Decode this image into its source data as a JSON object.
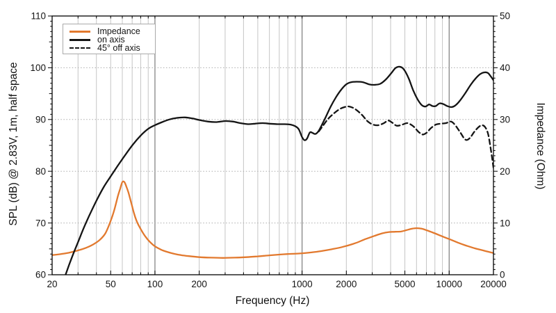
{
  "chart_data": {
    "type": "line",
    "title": "",
    "x_axis": {
      "label": "Frequency (Hz)",
      "scale": "log",
      "min": 20,
      "max": 20000,
      "labeled_ticks": [
        {
          "v": 20,
          "label": "20"
        },
        {
          "v": 50,
          "label": "50"
        },
        {
          "v": 100,
          "label": "100"
        },
        {
          "v": 200,
          "label": "200"
        },
        {
          "v": 1000,
          "label": "1000"
        },
        {
          "v": 2000,
          "label": "2000"
        },
        {
          "v": 5000,
          "label": "5000"
        },
        {
          "v": 10000,
          "label": "10000"
        },
        {
          "v": 20000,
          "label": "20000"
        }
      ],
      "minor_ticks": [
        30,
        40,
        50,
        60,
        70,
        80,
        90,
        200,
        300,
        400,
        500,
        600,
        700,
        800,
        900,
        2000,
        3000,
        4000,
        5000,
        6000,
        7000,
        8000,
        9000
      ],
      "decade_lines": [
        100,
        1000,
        10000
      ]
    },
    "y_left": {
      "label": "SPL (dB) @ 2.83V, 1m, half space",
      "min": 60,
      "max": 110,
      "major_ticks": [
        60,
        70,
        80,
        90,
        100,
        110
      ],
      "minor_step": 1,
      "gridlines": [
        70,
        80,
        90,
        100
      ],
      "grid_style": "dotted"
    },
    "y_right": {
      "label": "Impedance (Ohm)",
      "min": 0,
      "max": 50,
      "major_ticks": [
        0,
        10,
        20,
        30,
        40,
        50
      ],
      "minor_step": 1
    },
    "legend": {
      "position": "top-left-inside"
    },
    "colors": {
      "impedance": "#e2792e",
      "spl": "#141414",
      "grid_minor": "#c5c5c5",
      "grid_decade": "#7f7f7f",
      "grid_dotted": "#ababab",
      "axis": "#000000",
      "text": "#141414"
    },
    "series": [
      {
        "name": "Impedance",
        "axis": "right",
        "style": "solid",
        "color": "#e2792e",
        "points": [
          [
            20,
            3.8
          ],
          [
            23,
            4.0
          ],
          [
            26,
            4.25
          ],
          [
            30,
            4.7
          ],
          [
            34,
            5.2
          ],
          [
            38,
            5.85
          ],
          [
            42,
            6.7
          ],
          [
            46,
            8.0
          ],
          [
            50,
            10.4
          ],
          [
            53,
            12.6
          ],
          [
            56,
            15.2
          ],
          [
            58,
            16.6
          ],
          [
            60,
            17.9
          ],
          [
            62,
            17.9
          ],
          [
            64,
            17.0
          ],
          [
            66,
            15.9
          ],
          [
            69,
            13.9
          ],
          [
            72,
            11.9
          ],
          [
            75,
            10.4
          ],
          [
            78,
            9.4
          ],
          [
            82,
            8.3
          ],
          [
            86,
            7.4
          ],
          [
            92,
            6.4
          ],
          [
            100,
            5.5
          ],
          [
            110,
            4.85
          ],
          [
            120,
            4.45
          ],
          [
            135,
            4.05
          ],
          [
            150,
            3.8
          ],
          [
            170,
            3.6
          ],
          [
            200,
            3.4
          ],
          [
            240,
            3.3
          ],
          [
            290,
            3.25
          ],
          [
            350,
            3.3
          ],
          [
            420,
            3.4
          ],
          [
            500,
            3.55
          ],
          [
            600,
            3.75
          ],
          [
            700,
            3.9
          ],
          [
            800,
            4.0
          ],
          [
            950,
            4.1
          ],
          [
            1100,
            4.25
          ],
          [
            1300,
            4.5
          ],
          [
            1600,
            4.95
          ],
          [
            1900,
            5.4
          ],
          [
            2300,
            6.1
          ],
          [
            2700,
            6.9
          ],
          [
            3100,
            7.5
          ],
          [
            3500,
            8.0
          ],
          [
            3900,
            8.25
          ],
          [
            4300,
            8.3
          ],
          [
            4700,
            8.35
          ],
          [
            5100,
            8.6
          ],
          [
            5600,
            8.9
          ],
          [
            6000,
            9.0
          ],
          [
            6500,
            8.9
          ],
          [
            7100,
            8.55
          ],
          [
            8000,
            8.0
          ],
          [
            9000,
            7.4
          ],
          [
            10000,
            6.9
          ],
          [
            11500,
            6.2
          ],
          [
            13000,
            5.65
          ],
          [
            15000,
            5.1
          ],
          [
            17000,
            4.7
          ],
          [
            19000,
            4.35
          ],
          [
            20000,
            4.2
          ]
        ]
      },
      {
        "name": "on axis",
        "axis": "left",
        "style": "solid",
        "color": "#141414",
        "points": [
          [
            22.5,
            56.5
          ],
          [
            24,
            59.0
          ],
          [
            26,
            61.8
          ],
          [
            28,
            64.2
          ],
          [
            30,
            66.3
          ],
          [
            33,
            69.2
          ],
          [
            36,
            71.6
          ],
          [
            40,
            74.3
          ],
          [
            45,
            77.0
          ],
          [
            50,
            79.0
          ],
          [
            56,
            81.1
          ],
          [
            63,
            83.2
          ],
          [
            71,
            85.2
          ],
          [
            80,
            86.9
          ],
          [
            90,
            88.2
          ],
          [
            100,
            88.9
          ],
          [
            112,
            89.5
          ],
          [
            125,
            90.0
          ],
          [
            140,
            90.3
          ],
          [
            160,
            90.4
          ],
          [
            180,
            90.2
          ],
          [
            200,
            89.9
          ],
          [
            230,
            89.6
          ],
          [
            260,
            89.5
          ],
          [
            300,
            89.7
          ],
          [
            340,
            89.6
          ],
          [
            380,
            89.3
          ],
          [
            430,
            89.1
          ],
          [
            480,
            89.2
          ],
          [
            540,
            89.3
          ],
          [
            600,
            89.2
          ],
          [
            680,
            89.1
          ],
          [
            760,
            89.1
          ],
          [
            840,
            89.0
          ],
          [
            900,
            88.7
          ],
          [
            950,
            88.1
          ],
          [
            1000,
            86.6
          ],
          [
            1040,
            86.0
          ],
          [
            1080,
            86.3
          ],
          [
            1130,
            87.5
          ],
          [
            1180,
            87.4
          ],
          [
            1230,
            87.2
          ],
          [
            1290,
            87.7
          ],
          [
            1360,
            88.9
          ],
          [
            1450,
            90.5
          ],
          [
            1560,
            92.4
          ],
          [
            1700,
            94.3
          ],
          [
            1850,
            95.8
          ],
          [
            2000,
            96.8
          ],
          [
            2150,
            97.2
          ],
          [
            2350,
            97.3
          ],
          [
            2600,
            97.2
          ],
          [
            2850,
            96.8
          ],
          [
            3100,
            96.7
          ],
          [
            3400,
            96.9
          ],
          [
            3700,
            97.7
          ],
          [
            4000,
            98.8
          ],
          [
            4300,
            99.9
          ],
          [
            4550,
            100.2
          ],
          [
            4800,
            100.0
          ],
          [
            5050,
            99.2
          ],
          [
            5350,
            97.7
          ],
          [
            5700,
            95.6
          ],
          [
            6100,
            93.9
          ],
          [
            6500,
            92.8
          ],
          [
            6900,
            92.5
          ],
          [
            7300,
            92.9
          ],
          [
            7700,
            92.6
          ],
          [
            8100,
            92.6
          ],
          [
            8600,
            93.1
          ],
          [
            9100,
            93.0
          ],
          [
            9700,
            92.6
          ],
          [
            10400,
            92.4
          ],
          [
            11000,
            92.7
          ],
          [
            11800,
            93.6
          ],
          [
            12800,
            95.0
          ],
          [
            14000,
            96.7
          ],
          [
            15200,
            98.0
          ],
          [
            16300,
            98.8
          ],
          [
            17300,
            99.1
          ],
          [
            18300,
            99.0
          ],
          [
            19100,
            98.4
          ],
          [
            20000,
            97.6
          ]
        ]
      },
      {
        "name": "45° off axis",
        "axis": "left",
        "style": "dashed",
        "color": "#141414",
        "points": [
          [
            1300,
            87.7
          ],
          [
            1380,
            88.7
          ],
          [
            1500,
            90.1
          ],
          [
            1650,
            91.2
          ],
          [
            1800,
            92.0
          ],
          [
            1950,
            92.4
          ],
          [
            2100,
            92.5
          ],
          [
            2300,
            92.0
          ],
          [
            2550,
            90.9
          ],
          [
            2800,
            89.6
          ],
          [
            3050,
            89.0
          ],
          [
            3300,
            88.9
          ],
          [
            3600,
            89.3
          ],
          [
            3850,
            89.8
          ],
          [
            4100,
            89.4
          ],
          [
            4400,
            88.8
          ],
          [
            4800,
            89.0
          ],
          [
            5200,
            89.3
          ],
          [
            5700,
            88.7
          ],
          [
            6200,
            87.6
          ],
          [
            6600,
            87.1
          ],
          [
            7000,
            87.4
          ],
          [
            7500,
            88.3
          ],
          [
            8100,
            89.0
          ],
          [
            8800,
            89.2
          ],
          [
            9500,
            89.3
          ],
          [
            10300,
            89.6
          ],
          [
            11000,
            88.9
          ],
          [
            11900,
            87.5
          ],
          [
            12900,
            86.1
          ],
          [
            13800,
            86.4
          ],
          [
            14800,
            87.6
          ],
          [
            15800,
            88.5
          ],
          [
            16700,
            88.9
          ],
          [
            17600,
            88.5
          ],
          [
            18400,
            87.2
          ],
          [
            19000,
            85.0
          ],
          [
            19500,
            82.9
          ],
          [
            20000,
            80.7
          ]
        ]
      }
    ]
  }
}
